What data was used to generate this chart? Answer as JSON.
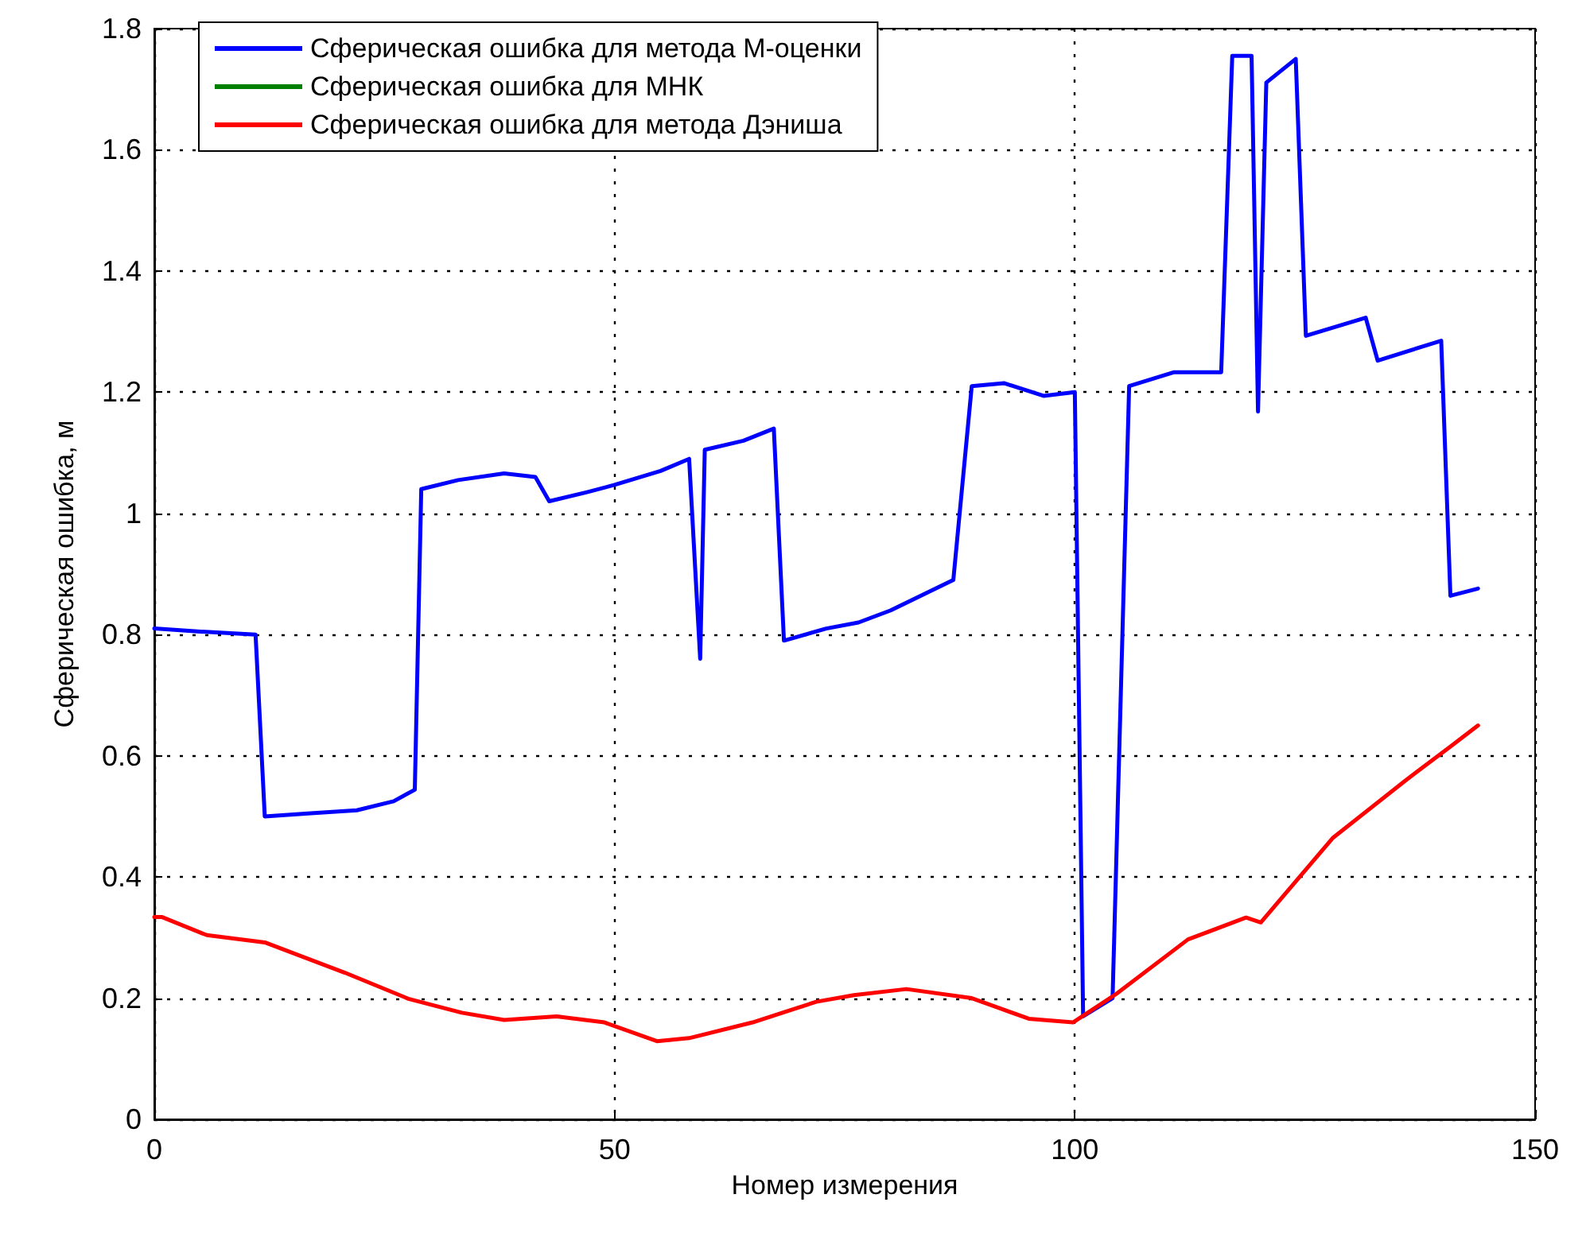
{
  "chart_data": {
    "type": "line",
    "xlabel": "Номер измерения",
    "ylabel": "Сферическая ошибка, м",
    "xlim": [
      0,
      150
    ],
    "xticks": [
      0,
      50,
      100,
      150
    ],
    "ylim": [
      0,
      1.8
    ],
    "yticks": [
      0,
      0.2,
      0.4,
      0.6,
      0.8,
      1,
      1.2,
      1.4,
      1.6,
      1.8
    ],
    "grid": true,
    "legend": "top left",
    "marker": "none",
    "line_style": "solid",
    "series": [
      {
        "name": "Сферическая ошибка для метода М-оценки",
        "color": "#0000ff",
        "x": [
          0,
          5,
          11,
          12,
          17,
          22,
          26,
          28.3,
          29,
          33,
          38,
          41.4,
          42.9,
          47,
          50,
          55,
          58.1,
          59.3,
          59.8,
          64,
          67.3,
          68.4,
          73,
          76.5,
          80,
          86.8,
          88.8,
          92.3,
          96.6,
          100,
          100.9,
          104.1,
          105.9,
          110.8,
          115.9,
          117.1,
          119.2,
          119.9,
          120.8,
          124,
          125.1,
          131.6,
          132.9,
          139.8,
          140.8,
          143.8
        ],
        "values": [
          0.81,
          0.805,
          0.8,
          0.5,
          0.505,
          0.51,
          0.525,
          0.544,
          1.04,
          1.055,
          1.066,
          1.06,
          1.02,
          1.035,
          1.047,
          1.07,
          1.09,
          0.76,
          1.105,
          1.12,
          1.14,
          0.79,
          0.81,
          0.82,
          0.84,
          0.89,
          1.21,
          1.215,
          1.194,
          1.2,
          0.17,
          0.2,
          1.21,
          1.233,
          1.233,
          1.755,
          1.755,
          1.168,
          1.711,
          1.75,
          1.293,
          1.323,
          1.252,
          1.285,
          0.864,
          0.876
        ]
      },
      {
        "name": "Сферическая ошибка для МНК",
        "color": "#008000"
      },
      {
        "name": "Сферическая ошибка для метода Дэниша",
        "color": "#ff0000",
        "x": [
          0,
          0.8,
          5.7,
          12,
          20.7,
          27.6,
          33.4,
          38,
          43.7,
          48.9,
          54.6,
          58.1,
          65,
          71.9,
          76,
          81.7,
          88.8,
          95,
          99.8,
          104.5,
          112.3,
          118.6,
          120.2,
          128,
          135.9,
          140.7,
          143.8
        ],
        "values": [
          0.334,
          0.334,
          0.304,
          0.292,
          0.242,
          0.199,
          0.176,
          0.164,
          0.17,
          0.16,
          0.129,
          0.134,
          0.16,
          0.194,
          0.205,
          0.215,
          0.2,
          0.166,
          0.16,
          0.207,
          0.297,
          0.333,
          0.325,
          0.464,
          0.559,
          0.614,
          0.65
        ]
      }
    ]
  }
}
